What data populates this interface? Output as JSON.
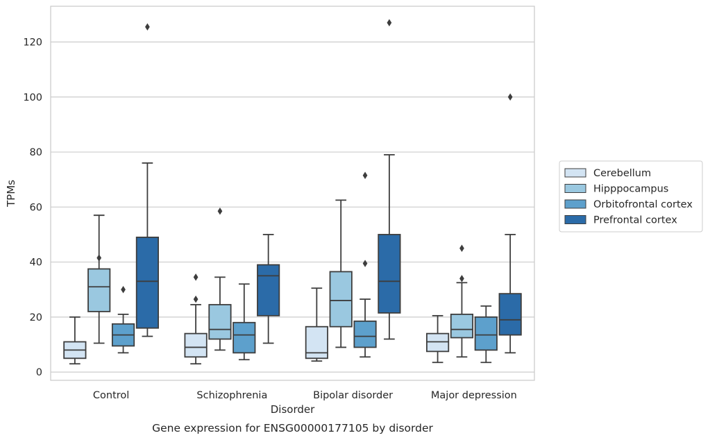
{
  "caption": "Gene expression for ENSG00000177105 by disorder",
  "chart_data": {
    "type": "box",
    "xlabel": "Disorder",
    "ylabel": "TPMs",
    "categories": [
      "Control",
      "Schizophrenia",
      "Bipolar disorder",
      "Major depression"
    ],
    "ylim": [
      -3,
      133
    ],
    "yticks": [
      0,
      20,
      40,
      60,
      80,
      100,
      120
    ],
    "grid": true,
    "legend_position": "right",
    "series": [
      {
        "name": "Cerebellum",
        "color": "#d3e4f3",
        "boxes": [
          {
            "whisker_low": 3,
            "q1": 5,
            "median": 8,
            "q3": 11,
            "whisker_high": 20,
            "outliers": []
          },
          {
            "whisker_low": 3,
            "q1": 5.5,
            "median": 9,
            "q3": 14,
            "whisker_high": 24.5,
            "outliers": [
              26.5,
              34.5
            ]
          },
          {
            "whisker_low": 4,
            "q1": 5,
            "median": 7,
            "q3": 16.5,
            "whisker_high": 30.5,
            "outliers": []
          },
          {
            "whisker_low": 3.5,
            "q1": 7.5,
            "median": 11,
            "q3": 14,
            "whisker_high": 20.5,
            "outliers": []
          }
        ]
      },
      {
        "name": "Hipppocampus",
        "color": "#9ac8e0",
        "boxes": [
          {
            "whisker_low": 10.5,
            "q1": 22,
            "median": 31,
            "q3": 37.5,
            "whisker_high": 57,
            "outliers": [
              41.5
            ]
          },
          {
            "whisker_low": 8,
            "q1": 12,
            "median": 15.5,
            "q3": 24.5,
            "whisker_high": 34.5,
            "outliers": [
              58.5
            ]
          },
          {
            "whisker_low": 9,
            "q1": 16.5,
            "median": 26,
            "q3": 36.5,
            "whisker_high": 62.5,
            "outliers": []
          },
          {
            "whisker_low": 5.5,
            "q1": 12.5,
            "median": 15.5,
            "q3": 21,
            "whisker_high": 32.5,
            "outliers": [
              34,
              45
            ]
          }
        ]
      },
      {
        "name": "Orbitofrontal cortex",
        "color": "#5da0cc",
        "boxes": [
          {
            "whisker_low": 7,
            "q1": 9.5,
            "median": 13.5,
            "q3": 17.5,
            "whisker_high": 21,
            "outliers": [
              30
            ]
          },
          {
            "whisker_low": 4.5,
            "q1": 7,
            "median": 13.5,
            "q3": 18,
            "whisker_high": 32,
            "outliers": []
          },
          {
            "whisker_low": 5.5,
            "q1": 9,
            "median": 13,
            "q3": 18.5,
            "whisker_high": 26.5,
            "outliers": [
              39.5,
              71.5
            ]
          },
          {
            "whisker_low": 3.5,
            "q1": 8,
            "median": 13.5,
            "q3": 20,
            "whisker_high": 24,
            "outliers": []
          }
        ]
      },
      {
        "name": "Prefrontal cortex",
        "color": "#2b6ba8",
        "boxes": [
          {
            "whisker_low": 13,
            "q1": 16,
            "median": 33,
            "q3": 49,
            "whisker_high": 76,
            "outliers": [
              125.5
            ]
          },
          {
            "whisker_low": 10.5,
            "q1": 20.5,
            "median": 35,
            "q3": 39,
            "whisker_high": 50,
            "outliers": []
          },
          {
            "whisker_low": 12,
            "q1": 21.5,
            "median": 33,
            "q3": 50,
            "whisker_high": 79,
            "outliers": [
              127
            ]
          },
          {
            "whisker_low": 7,
            "q1": 13.5,
            "median": 19,
            "q3": 28.5,
            "whisker_high": 50,
            "outliers": [
              100
            ]
          }
        ]
      }
    ]
  }
}
